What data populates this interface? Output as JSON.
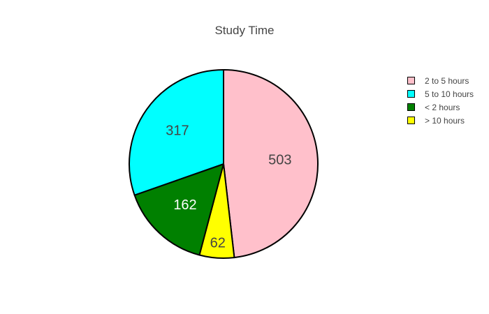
{
  "title": "Study Time",
  "chart_data": {
    "type": "pie",
    "title": "Study Time",
    "slices": [
      {
        "label": "2 to 5 hours",
        "value": 503,
        "color": "#ffc0cb",
        "text_color": "#444444"
      },
      {
        "label": "> 10 hours",
        "value": 62,
        "color": "#ffff00",
        "text_color": "#444444"
      },
      {
        "label": "< 2 hours",
        "value": 162,
        "color": "#008000",
        "text_color": "#ffffff"
      },
      {
        "label": "5 to 10 hours",
        "value": 317,
        "color": "#00ffff",
        "text_color": "#444444"
      }
    ],
    "legend": {
      "position": "right",
      "entries": [
        {
          "label": "2 to 5 hours",
          "color": "#ffc0cb"
        },
        {
          "label": "5 to 10 hours",
          "color": "#00ffff"
        },
        {
          "label": "< 2 hours",
          "color": "#008000"
        },
        {
          "label": "> 10 hours",
          "color": "#ffff00"
        }
      ]
    },
    "slice_border_color": "#000000",
    "direction": "clockwise",
    "start": "top"
  }
}
